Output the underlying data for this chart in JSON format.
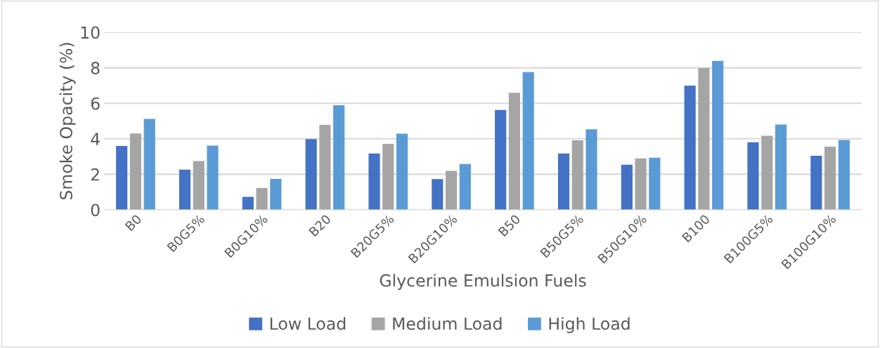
{
  "chart_data": {
    "type": "bar",
    "xlabel": "Glycerine Emulsion Fuels",
    "ylabel": "Smoke Opacity (%)",
    "categories": [
      "B0",
      "B0G5%",
      "B0G10%",
      "B20",
      "B20G5%",
      "B20G10%",
      "B50",
      "B50G5%",
      "B50G10%",
      "B100",
      "B100G5%",
      "B100G10%"
    ],
    "series": [
      {
        "name": "Low Load",
        "color": "#4472c4",
        "values": [
          3.6,
          2.26,
          0.73,
          3.98,
          3.17,
          1.73,
          5.62,
          3.17,
          2.54,
          7.0,
          3.8,
          3.04
        ]
      },
      {
        "name": "Medium Load",
        "color": "#a5a5a5",
        "values": [
          4.3,
          2.75,
          1.23,
          4.78,
          3.72,
          2.19,
          6.59,
          3.91,
          2.9,
          7.98,
          4.17,
          3.56
        ]
      },
      {
        "name": "High Load",
        "color": "#5b9bd5",
        "values": [
          5.12,
          3.62,
          1.74,
          5.89,
          4.29,
          2.58,
          7.76,
          4.54,
          2.93,
          8.39,
          4.8,
          3.93
        ]
      }
    ],
    "ylim": [
      0,
      10
    ],
    "yticks": [
      0,
      2,
      4,
      6,
      8,
      10
    ],
    "grid": "y",
    "legend": "bottom"
  }
}
